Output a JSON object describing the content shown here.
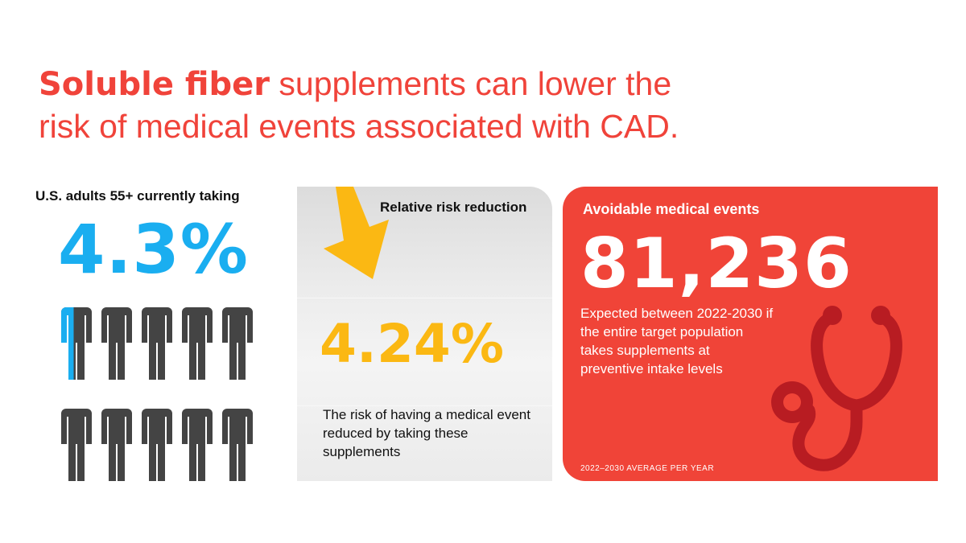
{
  "headline": {
    "bold": "Soluble fiber",
    "rest_line1": " supplements can lower the",
    "line2": "risk of medical events associated with CAD."
  },
  "left": {
    "label": "U.S. adults 55+ currently taking",
    "value": "4.3%",
    "people_total": 10,
    "people_highlighted_fraction_of_one": 0.43,
    "colors": {
      "highlight": "#1aaef0",
      "base": "#444444"
    }
  },
  "middle": {
    "title": "Relative risk reduction",
    "value": "4.24%",
    "description": "The risk of having a medical event reduced by taking these supplements",
    "icon": "down-arrow-icon",
    "colors": {
      "accent": "#fbb813"
    }
  },
  "right": {
    "title": "Avoidable medical events",
    "value": "81,236",
    "description": "Expected between 2022-2030 if the entire target population takes supplements at preventive intake levels",
    "footnote": "2022–2030 AVERAGE PER YEAR",
    "icon": "stethoscope-icon",
    "colors": {
      "background": "#f04438",
      "icon": "#b81c22"
    }
  }
}
